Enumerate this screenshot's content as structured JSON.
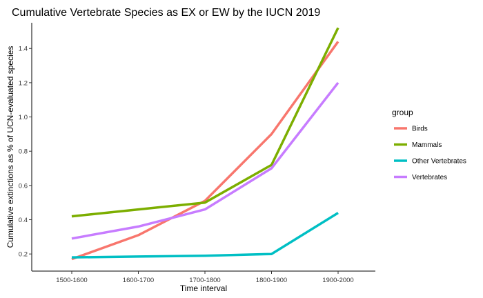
{
  "chart_data": {
    "type": "line",
    "title": "Cumulative Vertebrate Species as EX or EW by the IUCN 2019",
    "xlabel": "Time interval",
    "ylabel": "Cumulative extinctions as % of UCN-evaluated species",
    "categories": [
      "1500-1600",
      "1600-1700",
      "1700-1800",
      "1800-1900",
      "1900-2000"
    ],
    "ylim": [
      0.1,
      1.55
    ],
    "yticks": [
      0.2,
      0.4,
      0.6,
      0.8,
      1.0,
      1.2,
      1.4
    ],
    "ytick_labels": [
      "0.2",
      "0.4",
      "0.6",
      "0.8",
      "1.0",
      "1.2",
      "1.4"
    ],
    "grid": false,
    "legend": {
      "title": "group",
      "position": "right"
    },
    "series": [
      {
        "name": "Birds",
        "color": "#F8766D",
        "values": [
          0.17,
          0.31,
          0.51,
          0.9,
          1.44
        ]
      },
      {
        "name": "Mammals",
        "color": "#7CAE00",
        "values": [
          0.42,
          0.46,
          0.5,
          0.72,
          1.52
        ]
      },
      {
        "name": "Other Vertebrates",
        "color": "#00BFC4",
        "values": [
          0.18,
          0.185,
          0.19,
          0.2,
          0.44
        ]
      },
      {
        "name": "Vertebrates",
        "color": "#C77CFF",
        "values": [
          0.29,
          0.36,
          0.46,
          0.7,
          1.2
        ]
      }
    ]
  }
}
